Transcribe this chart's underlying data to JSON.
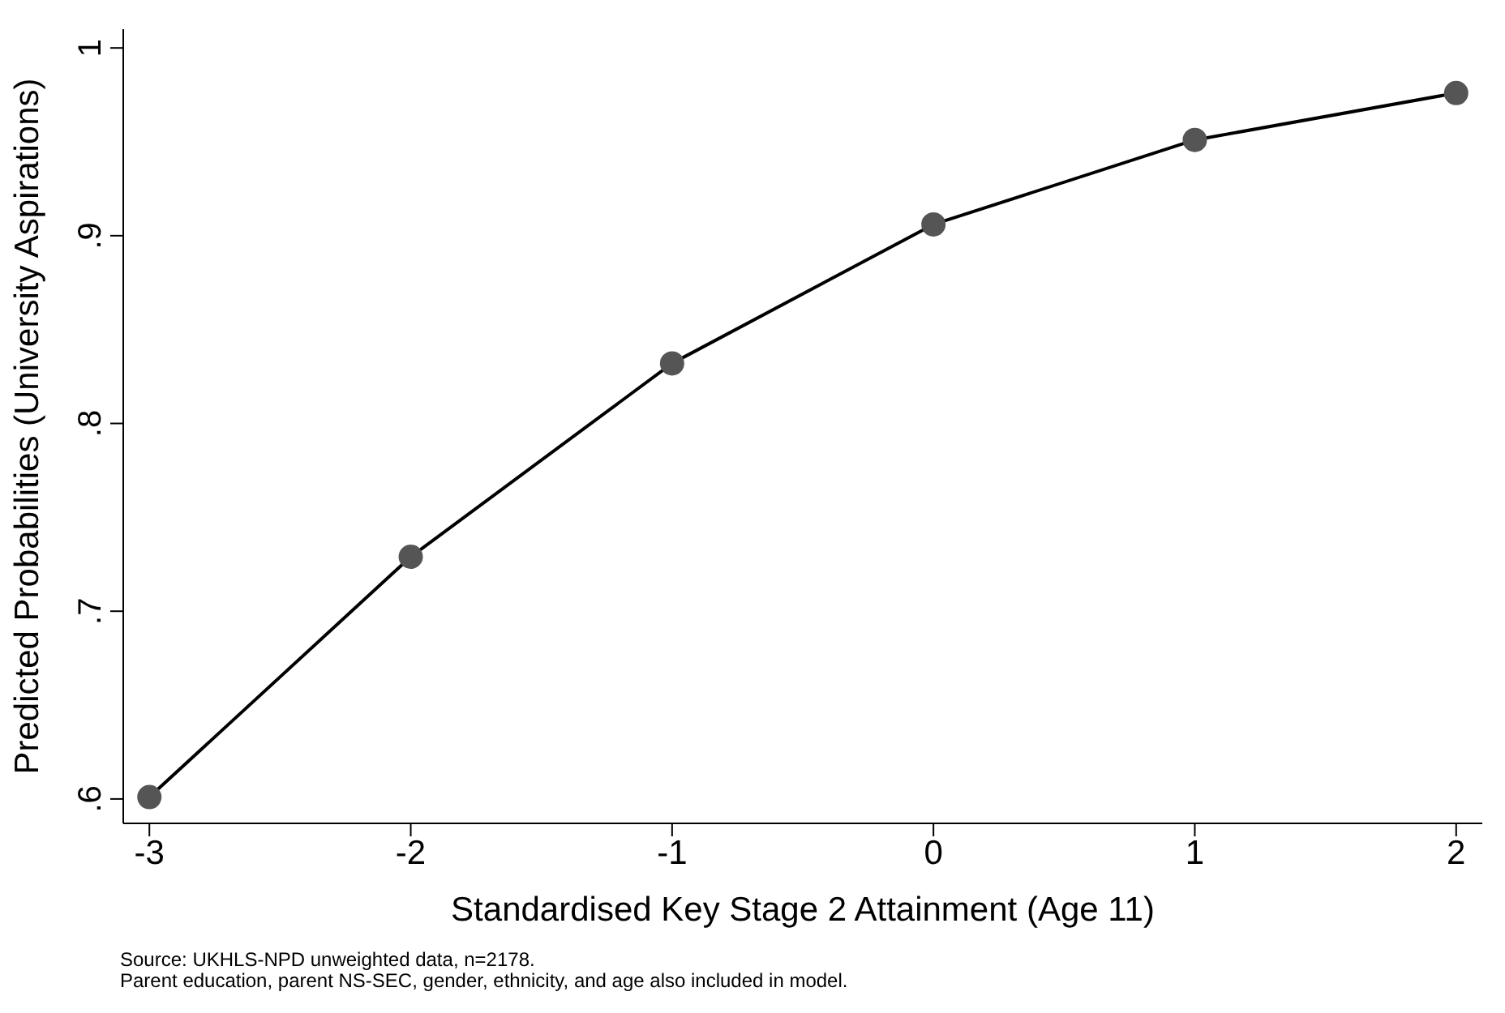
{
  "chart_data": {
    "type": "line",
    "xlabel": "Standardised Key Stage 2 Attainment (Age 11)",
    "ylabel": "Predicted Probabilities (University Aspirations)",
    "x": [
      -3,
      -2,
      -1,
      0,
      1,
      2
    ],
    "series": [
      {
        "color": "#000000",
        "values": [
          0.601,
          0.729,
          0.832,
          0.906,
          0.951,
          0.976
        ]
      }
    ],
    "xlim": [
      -3.1,
      2.1
    ],
    "xticks": [
      -3,
      -2,
      -1,
      0,
      1,
      2
    ],
    "ylim": [
      0.587,
      1.01
    ],
    "yticks": [
      {
        "value": 0.6,
        "label": ".6"
      },
      {
        "value": 0.7,
        "label": ".7"
      },
      {
        "value": 0.8,
        "label": ".8"
      },
      {
        "value": 0.9,
        "label": ".9"
      },
      {
        "value": 1,
        "label": "1"
      }
    ],
    "marker": "circle",
    "grid": false,
    "legend": false,
    "annotations": [
      "Source: UKHLS-NPD unweighted data, n=2178.",
      "Parent education, parent NS-SEC, gender, ethnicity, and age also included in model."
    ]
  }
}
